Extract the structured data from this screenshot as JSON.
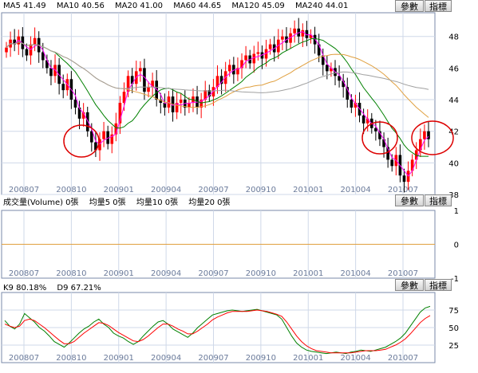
{
  "price_panel": {
    "legend": [
      {
        "label": "MA5 41.49",
        "color": "#000000"
      },
      {
        "label": "MA10 40.56",
        "color": "#000000"
      },
      {
        "label": "MA20 41.00",
        "color": "#000000"
      },
      {
        "label": "MA60 44.65",
        "color": "#000000"
      },
      {
        "label": "MA120 45.09",
        "color": "#000000"
      },
      {
        "label": "MA240 44.01",
        "color": "#000000"
      }
    ],
    "settings_button": "參數",
    "indicator_button": "指標"
  },
  "volume_panel": {
    "legend": [
      "成交量(Volume) 0張",
      "均量5 0張",
      "均量10 0張",
      "均量20 0張"
    ],
    "settings_button": "參數",
    "indicator_button": "指標"
  },
  "kd_panel": {
    "legend": [
      "K9 80.18%",
      "D9 67.21%"
    ],
    "settings_button": "參數",
    "indicator_button": "指標"
  },
  "colors": {
    "up": "#ff0000",
    "down": "#000000",
    "ma5": "#ff00ff",
    "ma20": "#008000",
    "ma60": "#e0a040",
    "ma120": "#a0a0a0",
    "k": "#008000",
    "d": "#ff0000",
    "grid": "#cfd8e8",
    "volume_ma": "#e0a040"
  },
  "chart_data": [
    {
      "type": "candlestick",
      "title": "",
      "x_ticks": [
        "200807",
        "200810",
        "200901",
        "200904",
        "200907",
        "200910",
        "201001",
        "201004",
        "201007"
      ],
      "y_ticks": [
        38,
        40,
        42,
        44,
        46,
        48
      ],
      "ylim": [
        38,
        49.5
      ],
      "grid": true,
      "close_series": [
        47.3,
        47.8,
        47.5,
        48.0,
        47.2,
        46.8,
        47.5,
        47.9,
        47.0,
        46.5,
        46.0,
        45.5,
        46.2,
        45.0,
        44.6,
        45.3,
        44.0,
        43.5,
        42.8,
        43.2,
        42.0,
        41.3,
        40.8,
        41.5,
        42.0,
        41.2,
        41.8,
        42.5,
        43.8,
        44.5,
        45.5,
        45.0,
        45.8,
        46.0,
        44.5,
        44.8,
        45.2,
        44.0,
        43.8,
        43.5,
        44.2,
        43.2,
        43.8,
        44.0,
        43.5,
        43.8,
        44.2,
        43.5,
        44.0,
        44.6,
        44.2,
        44.8,
        45.5,
        45.0,
        45.8,
        46.2,
        45.6,
        46.0,
        46.5,
        46.8,
        46.3,
        46.9,
        47.0,
        46.6,
        47.2,
        47.5,
        47.0,
        47.8,
        48.0,
        47.6,
        48.2,
        48.5,
        48.0,
        48.4,
        47.9,
        48.1,
        47.5,
        46.8,
        46.2,
        45.8,
        46.0,
        45.5,
        45.2,
        44.8,
        44.0,
        43.5,
        43.8,
        43.0,
        42.5,
        42.8,
        42.2,
        42.0,
        41.5,
        41.0,
        40.2,
        39.8,
        40.5,
        39.2,
        38.8,
        39.5,
        40.2,
        40.8,
        41.5,
        42.0,
        41.5
      ],
      "ma_labels": [
        "MA5 41.49",
        "MA10 40.56",
        "MA20 41.00",
        "MA60 44.65",
        "MA120 45.09",
        "MA240 44.01"
      ],
      "ma_last": [
        41.49,
        40.56,
        41.0,
        44.65,
        45.09,
        44.01
      ]
    },
    {
      "type": "bar",
      "title": "",
      "series": [
        {
          "name": "成交量(Volume)",
          "values": [
            0
          ]
        }
      ],
      "y_ticks": [
        -1,
        0,
        1
      ],
      "ylim": [
        -1,
        1
      ],
      "x_ticks": [
        "200807",
        "200810",
        "200901",
        "200904",
        "200907",
        "200910",
        "201001",
        "201004",
        "201007"
      ]
    },
    {
      "type": "line",
      "title": "",
      "series": [
        {
          "name": "K9",
          "last": 80.18
        },
        {
          "name": "D9",
          "last": 67.21
        }
      ],
      "y_ticks": [
        25,
        50,
        75
      ],
      "ylim": [
        0,
        100
      ],
      "k_values": [
        60,
        52,
        48,
        55,
        70,
        64,
        58,
        50,
        45,
        38,
        30,
        26,
        22,
        28,
        35,
        42,
        48,
        52,
        58,
        62,
        55,
        50,
        42,
        38,
        35,
        30,
        26,
        30,
        38,
        45,
        52,
        58,
        60,
        55,
        48,
        44,
        40,
        36,
        42,
        50,
        56,
        62,
        68,
        70,
        72,
        74,
        75,
        74,
        73,
        74,
        75,
        76,
        74,
        72,
        70,
        68,
        62,
        50,
        38,
        28,
        22,
        18,
        16,
        15,
        14,
        13,
        14,
        15,
        14,
        13,
        15,
        16,
        18,
        17,
        16,
        18,
        20,
        22,
        26,
        30,
        35,
        42,
        52,
        62,
        72,
        78,
        80.18
      ],
      "d_values": [
        55,
        52,
        50,
        52,
        60,
        62,
        60,
        55,
        50,
        44,
        38,
        32,
        27,
        27,
        30,
        36,
        42,
        47,
        52,
        57,
        56,
        53,
        48,
        43,
        39,
        35,
        31,
        30,
        33,
        38,
        44,
        50,
        55,
        55,
        52,
        48,
        45,
        41,
        41,
        45,
        50,
        55,
        61,
        65,
        68,
        71,
        73,
        73,
        73,
        73,
        74,
        75,
        74,
        73,
        71,
        69,
        66,
        58,
        48,
        38,
        30,
        24,
        20,
        17,
        16,
        15,
        14,
        14,
        14,
        14,
        14,
        15,
        16,
        17,
        17,
        17,
        18,
        19,
        22,
        25,
        29,
        34,
        41,
        49,
        57,
        63,
        67.21
      ]
    }
  ]
}
